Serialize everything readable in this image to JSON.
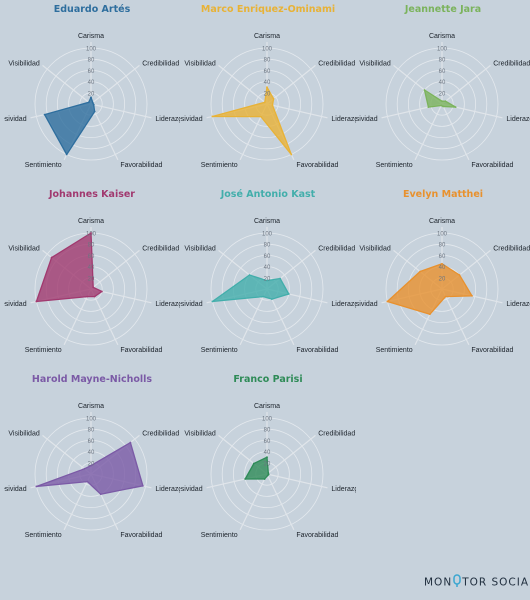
{
  "axis_labels": [
    "Carisma",
    "Credibilidad",
    "Liderazgo",
    "Favorabilidad",
    "Sentimiento",
    "Baja agresividad",
    "Visibilidad"
  ],
  "ticks": [
    "20",
    "40",
    "60",
    "80",
    "100"
  ],
  "chart_data": [
    {
      "type": "radar",
      "title": "Eduardo Artés",
      "color": "#2e6e9e",
      "categories": [
        "Carisma",
        "Credibilidad",
        "Liderazgo",
        "Favorabilidad",
        "Sentimiento",
        "Baja agresividad",
        "Visibilidad"
      ],
      "values": [
        12,
        4,
        5,
        15,
        100,
        85,
        5
      ],
      "rlim": [
        0,
        100
      ]
    },
    {
      "type": "radar",
      "title": "Marco Enriquez-Ominami",
      "color": "#e8b236",
      "categories": [
        "Carisma",
        "Credibilidad",
        "Liderazgo",
        "Favorabilidad",
        "Sentimiento",
        "Baja agresividad",
        "Visibilidad"
      ],
      "values": [
        30,
        15,
        10,
        100,
        25,
        100,
        5
      ],
      "rlim": [
        0,
        100
      ]
    },
    {
      "type": "radar",
      "title": "Jeannette Jara",
      "color": "#7bb35c",
      "categories": [
        "Carisma",
        "Credibilidad",
        "Liderazgo",
        "Favorabilidad",
        "Sentimiento",
        "Baja agresividad",
        "Visibilidad"
      ],
      "values": [
        5,
        8,
        25,
        5,
        3,
        25,
        40
      ],
      "rlim": [
        0,
        100
      ]
    },
    {
      "type": "radar",
      "title": "Johannes Kaiser",
      "color": "#a1396f",
      "categories": [
        "Carisma",
        "Credibilidad",
        "Liderazgo",
        "Favorabilidad",
        "Sentimiento",
        "Baja agresividad",
        "Visibilidad"
      ],
      "values": [
        100,
        5,
        20,
        15,
        15,
        100,
        90
      ],
      "rlim": [
        0,
        100
      ]
    },
    {
      "type": "radar",
      "title": "José Antonio Kast",
      "color": "#42aeab",
      "categories": [
        "Carisma",
        "Credibilidad",
        "Liderazgo",
        "Favorabilidad",
        "Sentimiento",
        "Baja agresividad",
        "Visibilidad"
      ],
      "values": [
        15,
        30,
        40,
        20,
        15,
        100,
        40
      ],
      "rlim": [
        0,
        100
      ]
    },
    {
      "type": "radar",
      "title": "Evelyn Matthei",
      "color": "#e8912e",
      "categories": [
        "Carisma",
        "Credibilidad",
        "Liderazgo",
        "Favorabilidad",
        "Sentimiento",
        "Baja agresividad",
        "Visibilidad"
      ],
      "values": [
        45,
        40,
        55,
        15,
        50,
        100,
        50
      ],
      "rlim": [
        0,
        100
      ]
    },
    {
      "type": "radar",
      "title": "Harold Mayne-Nicholls",
      "color": "#7b5aa6",
      "categories": [
        "Carisma",
        "Credibilidad",
        "Liderazgo",
        "Favorabilidad",
        "Sentimiento",
        "Baja agresividad",
        "Visibilidad"
      ],
      "values": [
        15,
        90,
        95,
        40,
        15,
        100,
        15
      ],
      "rlim": [
        0,
        100
      ]
    },
    {
      "type": "radar",
      "title": "Franco Parisi",
      "color": "#2e8b57",
      "categories": [
        "Carisma",
        "Credibilidad",
        "Liderazgo",
        "Favorabilidad",
        "Sentimiento",
        "Baja agresividad",
        "Visibilidad"
      ],
      "values": [
        30,
        3,
        3,
        3,
        10,
        40,
        30
      ],
      "rlim": [
        0,
        100
      ]
    }
  ],
  "brand": {
    "left": "MON",
    "right": "TOR SOCIAL",
    "icon": "microphone-icon"
  }
}
